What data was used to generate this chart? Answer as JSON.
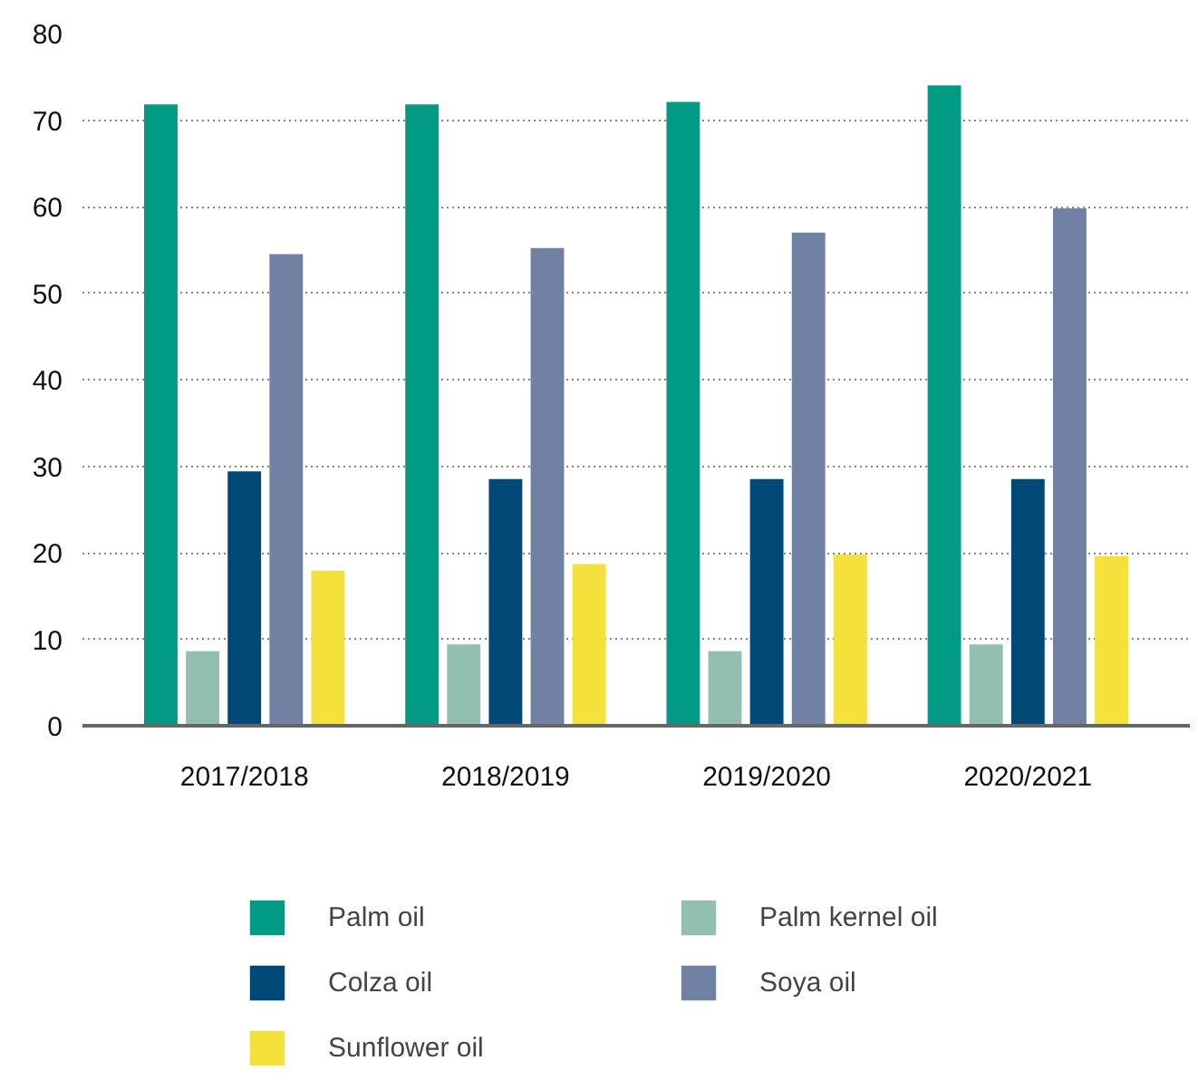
{
  "chart_data": {
    "type": "bar",
    "categories": [
      "2017/2018",
      "2018/2019",
      "2019/2020",
      "2020/2021"
    ],
    "series": [
      {
        "name": "Palm oil",
        "color": "#009a85",
        "values": [
          71.8,
          71.8,
          72.1,
          74.0
        ]
      },
      {
        "name": "Palm kernel oil",
        "color": "#93bfb3",
        "values": [
          8.6,
          9.4,
          8.6,
          9.4
        ]
      },
      {
        "name": "Colza oil",
        "color": "#004876",
        "values": [
          29.4,
          28.5,
          28.5,
          28.5
        ]
      },
      {
        "name": "Soya oil",
        "color": "#7181a4",
        "values": [
          54.5,
          55.2,
          57.0,
          59.8
        ]
      },
      {
        "name": "Sunflower oil",
        "color": "#f5e13c",
        "values": [
          17.9,
          18.7,
          19.8,
          19.6
        ]
      }
    ],
    "ylim": [
      0,
      80
    ],
    "yticks": [
      0,
      10,
      20,
      30,
      40,
      50,
      60,
      70,
      80
    ],
    "grid": "y",
    "legend": "bottom"
  }
}
